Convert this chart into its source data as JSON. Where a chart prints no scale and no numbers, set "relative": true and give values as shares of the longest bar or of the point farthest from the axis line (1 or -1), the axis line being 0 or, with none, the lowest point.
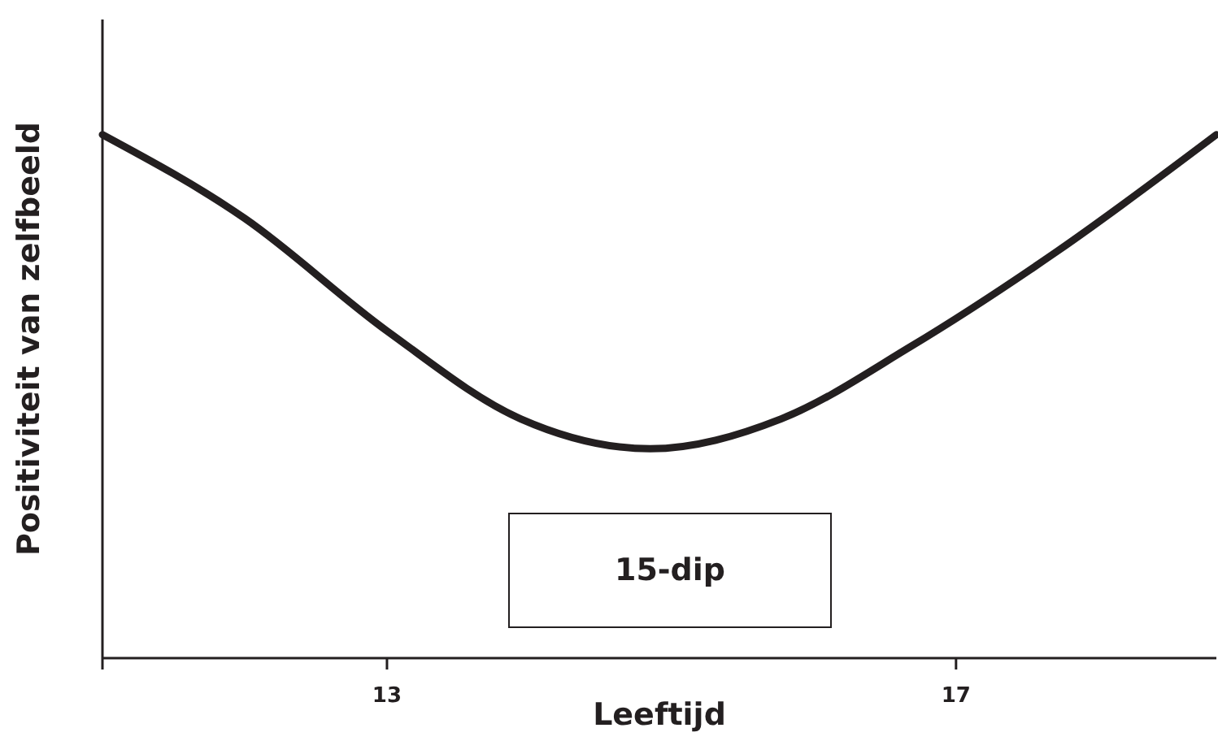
{
  "chart_data": {
    "type": "line",
    "xlabel": "Leeftijd",
    "ylabel": "Positiviteit van zelfbeeld",
    "relative": true,
    "x": [
      11,
      12,
      13,
      13.94,
      14.85,
      15.77,
      16.68,
      17.71,
      18.83
    ],
    "series": [
      {
        "color": "#231f20",
        "values": [
          1,
          0.84,
          0.625,
          0.457,
          0.4,
          0.457,
          0.595,
          0.777,
          1
        ]
      }
    ],
    "xlim": [
      11,
      18.83
    ],
    "xticks": [
      {
        "value": 11,
        "label": null
      },
      13,
      17
    ],
    "annotations": [
      "15-dip"
    ],
    "marker": "none",
    "line_style": "solid"
  }
}
